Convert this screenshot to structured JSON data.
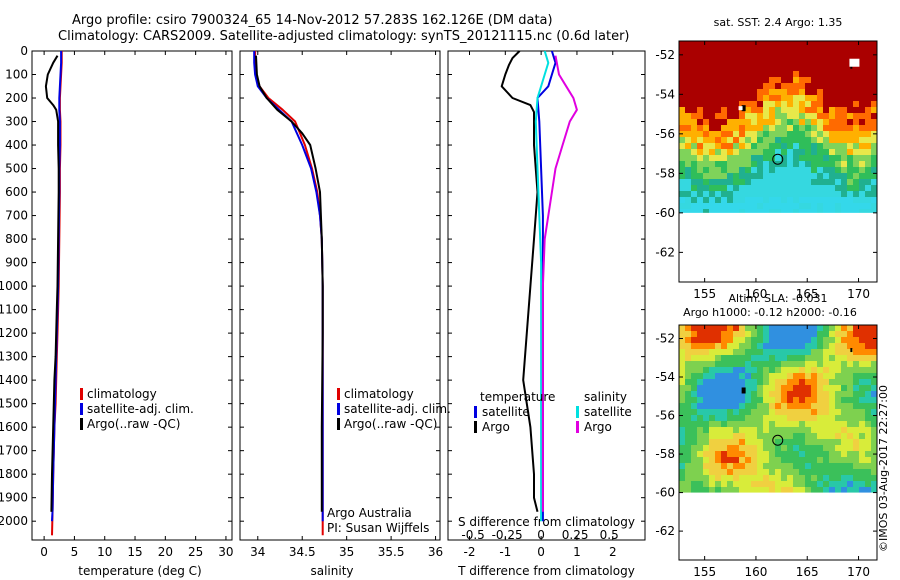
{
  "title": {
    "line1": "Argo profile: csiro 7900324_65 14-Nov-2012 57.283S 162.126E (DM data)",
    "line2": "Climatology: CARS2009. Satellite-adjusted climatology: synTS_20121115.nc (0.6d later)"
  },
  "colors": {
    "climatology": "#e00000",
    "satellite": "#0000e0",
    "argo": "#000000",
    "sat_salinity": "#00e0e0",
    "argo_salinity": "#e000e0"
  },
  "chart_data": [
    {
      "id": "temperature",
      "type": "line",
      "xlabel": "temperature (deg C)",
      "ylabel": "",
      "xlim": [
        -2,
        31
      ],
      "ylim": [
        2080,
        0
      ],
      "xticks": [
        0,
        5,
        10,
        15,
        20,
        25,
        30
      ],
      "yticks": [
        0,
        100,
        200,
        300,
        400,
        500,
        600,
        700,
        800,
        900,
        1000,
        1100,
        1200,
        1300,
        1400,
        1500,
        1600,
        1700,
        1800,
        1900,
        2000
      ],
      "legend": {
        "placement": "lower-center",
        "entries": [
          "climatology",
          "satellite-adj. clim.",
          "Argo(..raw -QC)"
        ]
      },
      "series": [
        {
          "name": "climatology",
          "color": "#e00000",
          "x": [
            2.9,
            2.9,
            2.8,
            2.6,
            2.6,
            2.7,
            2.7,
            2.6,
            2.6,
            2.5,
            2.4,
            2.3,
            2.2,
            2.1,
            2.0,
            1.9,
            1.7,
            1.6,
            1.5,
            1.4,
            1.3
          ],
          "y": [
            0,
            50,
            100,
            200,
            250,
            300,
            400,
            500,
            600,
            800,
            1000,
            1100,
            1200,
            1300,
            1400,
            1500,
            1600,
            1700,
            1800,
            1950,
            2060
          ]
        },
        {
          "name": "satellite-adj. clim.",
          "color": "#0000e0",
          "x": [
            2.8,
            2.8,
            2.7,
            2.5,
            2.5,
            2.6,
            2.6,
            2.5,
            2.5,
            2.4,
            2.3,
            2.2,
            2.1,
            2.0,
            1.9,
            1.8,
            1.7,
            1.6,
            1.5,
            1.4,
            1.3
          ],
          "y": [
            0,
            50,
            100,
            200,
            250,
            300,
            400,
            500,
            600,
            800,
            1000,
            1100,
            1200,
            1300,
            1400,
            1500,
            1600,
            1700,
            1800,
            1950,
            2000
          ]
        },
        {
          "name": "Argo(..raw -QC)",
          "color": "#000000",
          "x": [
            2.2,
            1.5,
            0.6,
            0.3,
            0.5,
            1.5,
            2.0,
            2.3,
            2.3,
            2.4,
            2.4,
            2.3,
            2.2,
            2.1,
            2.0,
            1.9,
            1.7,
            1.6,
            1.5,
            1.3,
            1.2
          ],
          "y": [
            20,
            50,
            100,
            150,
            200,
            230,
            250,
            300,
            400,
            500,
            600,
            800,
            1000,
            1100,
            1200,
            1300,
            1400,
            1500,
            1600,
            1800,
            1960
          ]
        }
      ]
    },
    {
      "id": "salinity",
      "type": "line",
      "xlabel": "salinity",
      "ylabel": "",
      "xlim": [
        33.8,
        36.05
      ],
      "ylim": [
        2080,
        0
      ],
      "xticks": [
        34,
        34.5,
        35,
        35.5,
        36
      ],
      "legend": {
        "placement": "lower-center",
        "entries": [
          "climatology",
          "satellite-adj. clim.",
          "Argo(..raw -QC)"
        ]
      },
      "annotation": [
        "Argo Australia",
        "PI: Susan Wijffels"
      ],
      "series": [
        {
          "name": "climatology",
          "color": "#e00000",
          "x": [
            33.97,
            33.97,
            33.98,
            34.02,
            34.12,
            34.28,
            34.42,
            34.53,
            34.61,
            34.67,
            34.7,
            34.72,
            34.73,
            34.73,
            34.73,
            34.73
          ],
          "y": [
            0,
            50,
            100,
            150,
            200,
            250,
            300,
            400,
            500,
            600,
            700,
            800,
            1000,
            1200,
            1600,
            2060
          ]
        },
        {
          "name": "satellite-adj. clim.",
          "color": "#0000e0",
          "x": [
            33.96,
            33.96,
            33.97,
            34.0,
            34.1,
            34.24,
            34.38,
            34.5,
            34.6,
            34.66,
            34.7,
            34.72,
            34.73,
            34.73,
            34.73,
            34.73
          ],
          "y": [
            0,
            50,
            100,
            150,
            200,
            250,
            300,
            400,
            500,
            600,
            700,
            800,
            1000,
            1200,
            1600,
            2000
          ]
        },
        {
          "name": "Argo(..raw -QC)",
          "color": "#000000",
          "x": [
            33.98,
            33.99,
            34.02,
            34.1,
            34.22,
            34.38,
            34.5,
            34.59,
            34.65,
            34.7,
            34.72,
            34.73,
            34.73,
            34.72,
            34.72
          ],
          "y": [
            20,
            100,
            150,
            200,
            250,
            300,
            350,
            400,
            500,
            600,
            800,
            1000,
            1200,
            1600,
            1960
          ]
        }
      ]
    },
    {
      "id": "difference",
      "type": "line",
      "xlabel": "T difference from climatology",
      "xlabel_top": "S difference from climatology",
      "xlim": [
        -2.6,
        2.9
      ],
      "ylim": [
        2080,
        0
      ],
      "xticks": [
        -2,
        -1,
        0,
        1,
        2
      ],
      "xticks_s": [
        {
          "label": "-0.5",
          "at": -1.9
        },
        {
          "label": "-0.25",
          "at": -0.95
        },
        {
          "label": "0",
          "at": 0
        },
        {
          "label": "0.25",
          "at": 0.95
        },
        {
          "label": "0.5",
          "at": 1.9
        }
      ],
      "legend": {
        "placement": "lower-center",
        "columns": [
          {
            "heading": "temperature",
            "entries": [
              "satellite",
              "Argo"
            ]
          },
          {
            "heading": "salinity",
            "entries": [
              "satellite",
              "Argo"
            ]
          }
        ]
      },
      "series": [
        {
          "name": "temperature satellite",
          "color": "#0000e0",
          "x": [
            0.3,
            0.4,
            0.3,
            0.2,
            -0.1,
            -0.05,
            0.0,
            0.05,
            0.05,
            0.05,
            0.05,
            0.05,
            0.05,
            0.05
          ],
          "y": [
            0,
            50,
            100,
            150,
            200,
            300,
            500,
            700,
            900,
            1100,
            1300,
            1500,
            1700,
            2000
          ]
        },
        {
          "name": "temperature Argo",
          "color": "#000000",
          "x": [
            -0.6,
            -0.8,
            -0.9,
            -1.0,
            -1.1,
            -0.8,
            -0.3,
            -0.2,
            -0.2,
            -0.1,
            -0.2,
            -0.3,
            -0.4,
            -0.5,
            -0.3,
            -0.2,
            -0.2,
            -0.1
          ],
          "y": [
            0,
            30,
            60,
            100,
            150,
            200,
            230,
            260,
            400,
            600,
            800,
            1000,
            1200,
            1400,
            1600,
            1800,
            1900,
            1960
          ]
        },
        {
          "name": "salinity satellite",
          "color": "#00e0e0",
          "x": [
            0.1,
            0.2,
            0.1,
            0.0,
            -0.1,
            -0.15,
            -0.1,
            -0.05,
            0.0,
            0.0,
            0.0,
            0.0
          ],
          "y": [
            0,
            50,
            100,
            150,
            200,
            300,
            500,
            700,
            900,
            1200,
            1600,
            2000
          ]
        },
        {
          "name": "salinity Argo",
          "color": "#e000e0",
          "x": [
            0.4,
            0.5,
            0.7,
            0.9,
            1.0,
            0.8,
            0.6,
            0.4,
            0.3,
            0.2,
            0.1,
            0.05,
            0.05,
            0.05
          ],
          "y": [
            20,
            100,
            150,
            200,
            250,
            300,
            400,
            500,
            600,
            700,
            800,
            1000,
            1500,
            1960
          ]
        }
      ]
    }
  ],
  "maps": [
    {
      "title_lines": [
        "sat. SST: 2.4  Argo: 1.35"
      ],
      "xticks": [
        155,
        160,
        165,
        170
      ],
      "yticks": [
        -52,
        -54,
        -56,
        -58,
        -60,
        -62
      ],
      "xlim": [
        152.5,
        171.8
      ],
      "ylim": [
        -63.5,
        -51.3
      ]
    },
    {
      "title_lines": [
        "Altim. SLA: -0.031",
        "Argo h1000: -0.12 h2000: -0.16"
      ],
      "xticks": [
        155,
        160,
        165,
        170
      ],
      "yticks": [
        -52,
        -54,
        -56,
        -58,
        -60,
        -62
      ],
      "xlim": [
        152.5,
        171.8
      ],
      "ylim": [
        -63.5,
        -51.3
      ]
    }
  ],
  "float_position": {
    "lon": 162.126,
    "lat": -57.283
  },
  "footer": "©IMOS 03-Aug-2017 22:27:00"
}
